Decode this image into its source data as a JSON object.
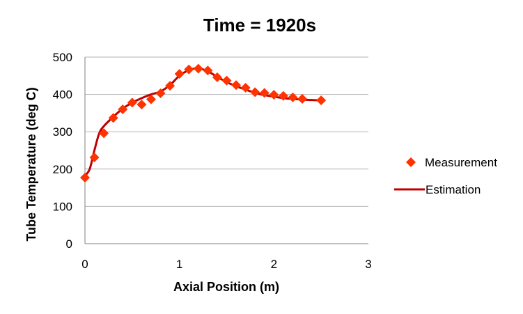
{
  "chart_data": {
    "type": "scatter",
    "title": "Time = 1920s",
    "xlabel": "Axial Position (m)",
    "ylabel": "Tube Temperature (deg C)",
    "xlim": [
      0,
      3
    ],
    "ylim": [
      0,
      500
    ],
    "x_ticks": [
      "0",
      "1",
      "2",
      "3"
    ],
    "y_ticks": [
      "0",
      "100",
      "200",
      "300",
      "400",
      "500"
    ],
    "grid": "horizontal",
    "legend_position": "right",
    "series": [
      {
        "name": "Measurement",
        "kind": "scatter",
        "marker": "diamond",
        "color": "#ff3300",
        "x": [
          0,
          0.1,
          0.2,
          0.3,
          0.4,
          0.5,
          0.6,
          0.7,
          0.8,
          0.9,
          1.0,
          1.1,
          1.2,
          1.3,
          1.4,
          1.5,
          1.6,
          1.7,
          1.8,
          1.9,
          2.0,
          2.1,
          2.2,
          2.3,
          2.5
        ],
        "y": [
          177,
          231,
          296,
          337,
          360,
          378,
          373,
          387,
          403,
          423,
          455,
          467,
          469,
          464,
          446,
          437,
          425,
          418,
          406,
          404,
          399,
          396,
          392,
          388,
          384
        ]
      },
      {
        "name": "Estimation",
        "kind": "line",
        "color": "#c00000",
        "x": [
          0,
          0.05,
          0.1,
          0.15,
          0.2,
          0.3,
          0.4,
          0.5,
          0.6,
          0.7,
          0.8,
          0.9,
          1.0,
          1.1,
          1.2,
          1.3,
          1.4,
          1.5,
          1.6,
          1.7,
          1.8,
          1.9,
          2.0,
          2.1,
          2.2,
          2.3,
          2.4,
          2.5
        ],
        "y": [
          182,
          200,
          250,
          295,
          315,
          340,
          362,
          378,
          390,
          400,
          408,
          425,
          450,
          465,
          470,
          462,
          447,
          433,
          422,
          413,
          404,
          398,
          394,
          390,
          388,
          386,
          385,
          384
        ]
      }
    ]
  }
}
